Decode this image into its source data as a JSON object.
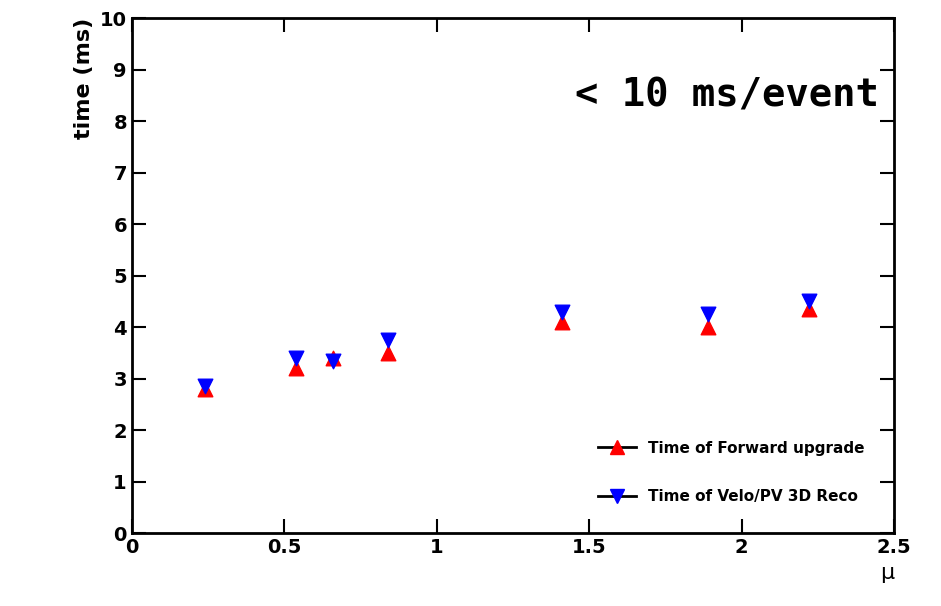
{
  "chart_data": {
    "type": "scatter",
    "x_label": "μ",
    "y_label": "time (ms)",
    "annotations": [
      "< 10 ms/event"
    ],
    "series": [
      {
        "name": "Time of Forward upgrade",
        "color": "#ff0000",
        "marker": "triangle_up",
        "x": [
          0.24,
          0.54,
          0.66,
          0.84,
          1.41,
          1.89,
          2.22
        ],
        "values": [
          2.8,
          3.2,
          3.4,
          3.5,
          4.1,
          4.0,
          4.35
        ]
      },
      {
        "name": "Time of Velo/PV 3D Reco",
        "color": "#0000ff",
        "marker": "triangle_down",
        "x": [
          0.24,
          0.54,
          0.66,
          0.84,
          1.41,
          1.89,
          2.22
        ],
        "values": [
          2.85,
          3.4,
          3.35,
          3.75,
          4.3,
          4.25,
          4.5
        ]
      }
    ],
    "xlim": [
      0,
      2.5
    ],
    "xticks": [
      0,
      0.5,
      1,
      1.5,
      2,
      2.5
    ],
    "ylim": [
      0,
      10
    ],
    "yticks": [
      0,
      1,
      2,
      3,
      4,
      5,
      6,
      7,
      8,
      9,
      10
    ],
    "legend": "lower right",
    "grid": false
  }
}
